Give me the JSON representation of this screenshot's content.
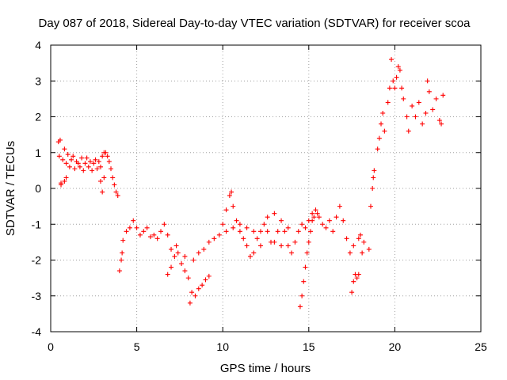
{
  "chart_data": {
    "type": "scatter",
    "title": "Day 087 of 2018, Sidereal Day-to-day VTEC variation (SDTVAR) for receiver scoa",
    "xlabel": "GPS time / hours",
    "ylabel": "SDTVAR / TECUs",
    "xlim": [
      0,
      25
    ],
    "ylim": [
      -4,
      4
    ],
    "x_ticks": [
      "0",
      "5",
      "10",
      "15",
      "20",
      "25"
    ],
    "y_ticks": [
      "4",
      "3",
      "2",
      "1",
      "0",
      "-1",
      "-2",
      "-3",
      "-4"
    ],
    "grid": true,
    "marker": "+",
    "color": "#ff0000",
    "series": [
      {
        "points": [
          [
            0.45,
            1.3
          ],
          [
            0.5,
            0.9
          ],
          [
            0.55,
            1.35
          ],
          [
            0.6,
            0.15
          ],
          [
            0.7,
            0.8
          ],
          [
            0.8,
            1.1
          ],
          [
            0.9,
            0.7
          ],
          [
            1.0,
            0.95
          ],
          [
            1.1,
            0.6
          ],
          [
            1.2,
            0.8
          ],
          [
            1.3,
            0.9
          ],
          [
            1.4,
            0.55
          ],
          [
            1.5,
            0.75
          ],
          [
            1.6,
            0.7
          ],
          [
            1.7,
            0.6
          ],
          [
            1.8,
            0.85
          ],
          [
            1.9,
            0.5
          ],
          [
            2.0,
            0.7
          ],
          [
            2.1,
            0.85
          ],
          [
            2.2,
            0.6
          ],
          [
            2.3,
            0.75
          ],
          [
            2.4,
            0.5
          ],
          [
            2.5,
            0.7
          ],
          [
            2.6,
            0.8
          ],
          [
            2.7,
            0.55
          ],
          [
            2.8,
            0.75
          ],
          [
            2.9,
            0.6
          ],
          [
            3.0,
            0.9
          ],
          [
            3.1,
            1.0
          ],
          [
            3.2,
            1.0
          ],
          [
            3.3,
            0.9
          ],
          [
            3.4,
            0.75
          ],
          [
            3.5,
            0.55
          ],
          [
            3.6,
            0.3
          ],
          [
            3.7,
            0.1
          ],
          [
            3.8,
            -0.1
          ],
          [
            3.9,
            -0.2
          ],
          [
            3.0,
            -0.1
          ],
          [
            3.1,
            0.3
          ],
          [
            2.9,
            0.2
          ],
          [
            0.6,
            0.1
          ],
          [
            0.8,
            0.2
          ],
          [
            0.9,
            0.3
          ],
          [
            4.0,
            -2.3
          ],
          [
            4.1,
            -2.0
          ],
          [
            4.15,
            -1.8
          ],
          [
            4.2,
            -1.45
          ],
          [
            4.4,
            -1.2
          ],
          [
            4.6,
            -1.1
          ],
          [
            4.8,
            -0.9
          ],
          [
            5.0,
            -1.1
          ],
          [
            5.2,
            -1.3
          ],
          [
            5.4,
            -1.2
          ],
          [
            5.6,
            -1.1
          ],
          [
            5.8,
            -1.35
          ],
          [
            6.0,
            -1.3
          ],
          [
            6.2,
            -1.4
          ],
          [
            6.4,
            -1.2
          ],
          [
            6.6,
            -1.0
          ],
          [
            6.8,
            -1.3
          ],
          [
            7.0,
            -1.7
          ],
          [
            7.2,
            -1.9
          ],
          [
            7.4,
            -1.8
          ],
          [
            7.6,
            -2.1
          ],
          [
            7.8,
            -2.3
          ],
          [
            8.0,
            -2.5
          ],
          [
            8.1,
            -3.2
          ],
          [
            8.2,
            -2.9
          ],
          [
            8.4,
            -3.0
          ],
          [
            8.6,
            -2.8
          ],
          [
            8.8,
            -2.7
          ],
          [
            9.0,
            -2.55
          ],
          [
            9.2,
            -2.45
          ],
          [
            6.8,
            -2.4
          ],
          [
            7.0,
            -2.2
          ],
          [
            7.3,
            -1.6
          ],
          [
            7.8,
            -1.9
          ],
          [
            8.3,
            -2.0
          ],
          [
            8.6,
            -1.8
          ],
          [
            8.9,
            -1.7
          ],
          [
            9.2,
            -1.5
          ],
          [
            9.5,
            -1.4
          ],
          [
            9.8,
            -1.3
          ],
          [
            10.0,
            -1.0
          ],
          [
            10.2,
            -0.6
          ],
          [
            10.4,
            -0.2
          ],
          [
            10.5,
            -0.1
          ],
          [
            10.6,
            -0.5
          ],
          [
            10.8,
            -0.9
          ],
          [
            11.0,
            -1.2
          ],
          [
            11.2,
            -1.4
          ],
          [
            11.4,
            -1.6
          ],
          [
            11.6,
            -1.9
          ],
          [
            11.8,
            -1.8
          ],
          [
            12.0,
            -1.4
          ],
          [
            12.2,
            -1.2
          ],
          [
            12.4,
            -1.0
          ],
          [
            12.6,
            -1.2
          ],
          [
            12.8,
            -1.5
          ],
          [
            13.0,
            -1.5
          ],
          [
            13.2,
            -1.2
          ],
          [
            13.4,
            -0.9
          ],
          [
            13.6,
            -1.2
          ],
          [
            13.8,
            -1.6
          ],
          [
            14.0,
            -1.8
          ],
          [
            14.2,
            -1.5
          ],
          [
            14.4,
            -1.2
          ],
          [
            14.6,
            -1.0
          ],
          [
            14.8,
            -1.1
          ],
          [
            15.0,
            -0.9
          ],
          [
            15.2,
            -0.7
          ],
          [
            15.4,
            -0.6
          ],
          [
            15.6,
            -0.8
          ],
          [
            15.8,
            -1.0
          ],
          [
            16.0,
            -1.1
          ],
          [
            16.2,
            -0.9
          ],
          [
            16.4,
            -1.2
          ],
          [
            16.6,
            -0.8
          ],
          [
            16.8,
            -0.5
          ],
          [
            17.0,
            -0.9
          ],
          [
            17.2,
            -1.4
          ],
          [
            17.4,
            -1.8
          ],
          [
            17.6,
            -1.6
          ],
          [
            10.2,
            -1.2
          ],
          [
            10.6,
            -1.1
          ],
          [
            11.0,
            -1.0
          ],
          [
            11.4,
            -1.1
          ],
          [
            11.8,
            -1.2
          ],
          [
            12.2,
            -1.6
          ],
          [
            12.6,
            -0.8
          ],
          [
            13.0,
            -0.7
          ],
          [
            13.4,
            -1.6
          ],
          [
            13.8,
            -1.1
          ],
          [
            14.5,
            -3.3
          ],
          [
            14.6,
            -3.0
          ],
          [
            14.7,
            -2.6
          ],
          [
            14.8,
            -2.2
          ],
          [
            14.9,
            -1.8
          ],
          [
            15.0,
            -1.5
          ],
          [
            15.1,
            -1.2
          ],
          [
            15.2,
            -0.9
          ],
          [
            15.3,
            -0.8
          ],
          [
            15.5,
            -0.7
          ],
          [
            17.5,
            -2.9
          ],
          [
            17.6,
            -2.6
          ],
          [
            17.7,
            -2.4
          ],
          [
            17.8,
            -2.5
          ],
          [
            17.9,
            -2.4
          ],
          [
            17.9,
            -1.4
          ],
          [
            18.0,
            -1.3
          ],
          [
            18.1,
            -1.8
          ],
          [
            18.2,
            -1.5
          ],
          [
            18.5,
            -1.7
          ],
          [
            18.6,
            -0.5
          ],
          [
            18.7,
            0.0
          ],
          [
            18.8,
            0.5
          ],
          [
            18.75,
            0.3
          ],
          [
            19.0,
            1.1
          ],
          [
            19.1,
            1.4
          ],
          [
            19.2,
            1.8
          ],
          [
            19.3,
            2.1
          ],
          [
            19.4,
            1.6
          ],
          [
            19.6,
            2.4
          ],
          [
            19.7,
            2.8
          ],
          [
            19.8,
            3.6
          ],
          [
            19.9,
            3.0
          ],
          [
            20.0,
            2.8
          ],
          [
            20.1,
            3.1
          ],
          [
            20.2,
            3.4
          ],
          [
            20.3,
            3.3
          ],
          [
            20.4,
            2.8
          ],
          [
            20.5,
            2.5
          ],
          [
            20.7,
            2.0
          ],
          [
            20.8,
            1.6
          ],
          [
            21.0,
            2.3
          ],
          [
            21.2,
            2.0
          ],
          [
            21.4,
            2.4
          ],
          [
            21.6,
            1.8
          ],
          [
            21.8,
            2.1
          ],
          [
            21.9,
            3.0
          ],
          [
            22.0,
            2.7
          ],
          [
            22.2,
            2.2
          ],
          [
            22.4,
            2.5
          ],
          [
            22.6,
            1.9
          ],
          [
            22.8,
            2.6
          ],
          [
            22.7,
            1.8
          ]
        ]
      }
    ]
  }
}
